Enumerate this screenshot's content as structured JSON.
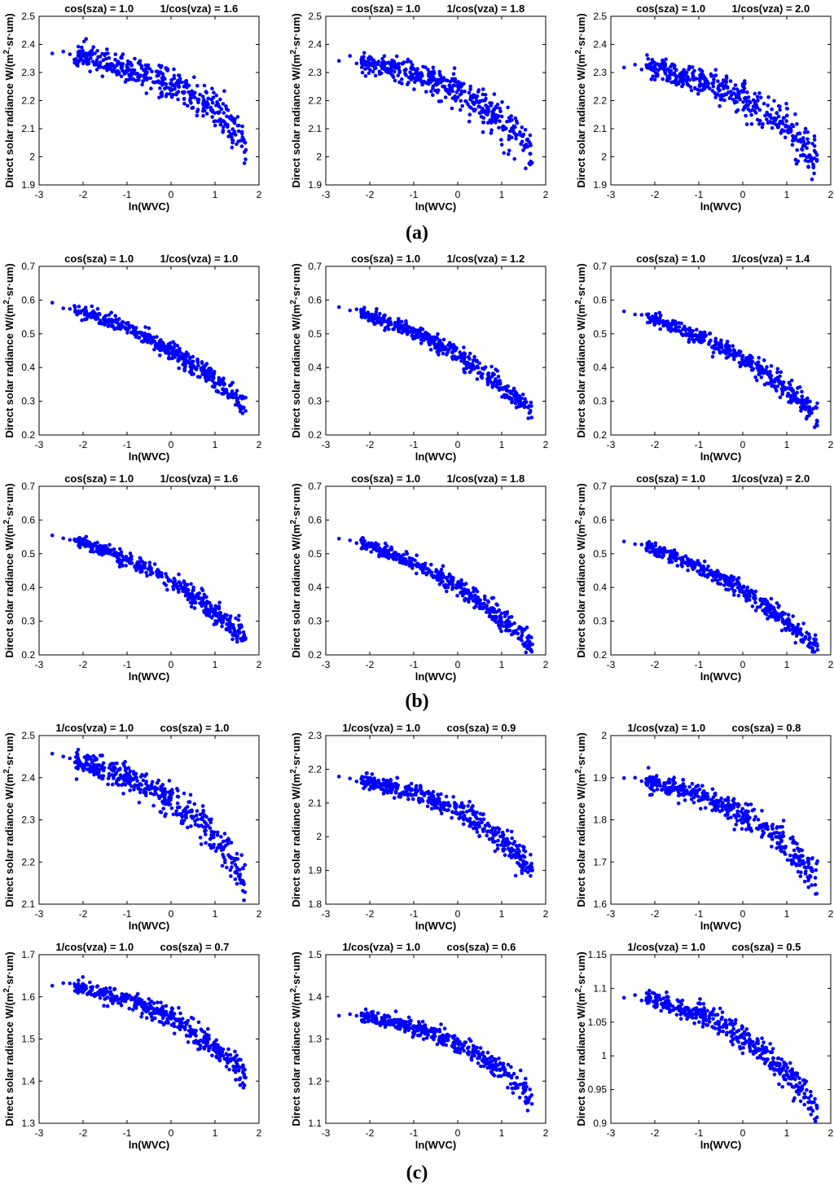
{
  "figure": {
    "panel_labels": [
      "(a)",
      "(b)",
      "(c)"
    ]
  },
  "style": {
    "marker_color": "#0000ff",
    "axis_color": "#000000",
    "background": "#ffffff"
  },
  "chart_data": [
    {
      "type": "scatter",
      "title_left": "cos(sza) = 1.0",
      "title_right": "1/cos(vza) = 1.6",
      "xlabel": "ln(WVC)",
      "ylabel_main": "Direct solar radiance W/(m",
      "ylabel_sup": "2",
      "ylabel_tail": "·sr·um)",
      "xlim": [
        -3,
        2
      ],
      "ylim": [
        1.9,
        2.5
      ],
      "xticks": [
        "-3",
        "-2",
        "-1",
        "0",
        "1",
        "2"
      ],
      "yticks": [
        "1.9",
        "2",
        "2.1",
        "2.2",
        "2.3",
        "2.4",
        "2.5"
      ],
      "curve": {
        "start": 2.37,
        "drop": 0.31,
        "k": 2.2,
        "shift": 0
      },
      "spread": 0.025,
      "n": 420,
      "seed": 11
    },
    {
      "type": "scatter",
      "title_left": "cos(sza) = 1.0",
      "title_right": "1/cos(vza) = 1.8",
      "xlabel": "ln(WVC)",
      "ylabel_main": "Direct solar radiance W/(m",
      "ylabel_sup": "2",
      "ylabel_tail": "·sr·um)",
      "xlim": [
        -3,
        2
      ],
      "ylim": [
        1.9,
        2.5
      ],
      "xticks": [
        "-3",
        "-2",
        "-1",
        "0",
        "1",
        "2"
      ],
      "yticks": [
        "1.9",
        "2",
        "2.1",
        "2.2",
        "2.3",
        "2.4",
        "2.5"
      ],
      "curve": {
        "start": 2.35,
        "drop": 0.33,
        "k": 2.2,
        "shift": 0
      },
      "spread": 0.025,
      "n": 420,
      "seed": 12
    },
    {
      "type": "scatter",
      "title_left": "cos(sza) = 1.0",
      "title_right": "1/cos(vza) = 2.0",
      "xlabel": "ln(WVC)",
      "ylabel_main": "Direct solar radiance W/(m",
      "ylabel_sup": "2",
      "ylabel_tail": "·sr·um)",
      "xlim": [
        -3,
        2
      ],
      "ylim": [
        1.9,
        2.5
      ],
      "xticks": [
        "-3",
        "-2",
        "-1",
        "0",
        "1",
        "2"
      ],
      "yticks": [
        "1.9",
        "2",
        "2.1",
        "2.2",
        "2.3",
        "2.4",
        "2.5"
      ],
      "curve": {
        "start": 2.33,
        "drop": 0.34,
        "k": 2.2,
        "shift": 0
      },
      "spread": 0.025,
      "n": 420,
      "seed": 13
    },
    {
      "type": "scatter",
      "title_left": "cos(sza) = 1.0",
      "title_right": "1/cos(vza) = 1.0",
      "xlabel": "ln(WVC)",
      "ylabel_main": "Direct solar radiance W/(m",
      "ylabel_sup": "2",
      "ylabel_tail": "·sr·um)",
      "xlim": [
        -3,
        2
      ],
      "ylim": [
        0.2,
        0.7
      ],
      "xticks": [
        "-3",
        "-2",
        "-1",
        "0",
        "1",
        "2"
      ],
      "yticks": [
        "0.2",
        "0.3",
        "0.4",
        "0.5",
        "0.6",
        "0.7"
      ],
      "curve": {
        "start": 0.59,
        "drop": 0.3,
        "k": 1.3,
        "shift": 0
      },
      "spread": 0.011,
      "n": 420,
      "seed": 21
    },
    {
      "type": "scatter",
      "title_left": "cos(sza) = 1.0",
      "title_right": "1/cos(vza) = 1.2",
      "xlabel": "ln(WVC)",
      "ylabel_main": "Direct solar radiance W/(m",
      "ylabel_sup": "2",
      "ylabel_tail": "·sr·um)",
      "xlim": [
        -3,
        2
      ],
      "ylim": [
        0.2,
        0.7
      ],
      "xticks": [
        "-3",
        "-2",
        "-1",
        "0",
        "1",
        "2"
      ],
      "yticks": [
        "0.2",
        "0.3",
        "0.4",
        "0.5",
        "0.6",
        "0.7"
      ],
      "curve": {
        "start": 0.58,
        "drop": 0.31,
        "k": 1.3,
        "shift": 0
      },
      "spread": 0.011,
      "n": 420,
      "seed": 22
    },
    {
      "type": "scatter",
      "title_left": "cos(sza) = 1.0",
      "title_right": "1/cos(vza) = 1.4",
      "xlabel": "ln(WVC)",
      "ylabel_main": "Direct solar radiance W/(m",
      "ylabel_sup": "2",
      "ylabel_tail": "·sr·um)",
      "xlim": [
        -3,
        2
      ],
      "ylim": [
        0.2,
        0.7
      ],
      "xticks": [
        "-3",
        "-2",
        "-1",
        "0",
        "1",
        "2"
      ],
      "yticks": [
        "0.2",
        "0.3",
        "0.4",
        "0.5",
        "0.6",
        "0.7"
      ],
      "curve": {
        "start": 0.57,
        "drop": 0.31,
        "k": 1.3,
        "shift": 0
      },
      "spread": 0.011,
      "n": 420,
      "seed": 23
    },
    {
      "type": "scatter",
      "title_left": "cos(sza) = 1.0",
      "title_right": "1/cos(vza) = 1.6",
      "xlabel": "ln(WVC)",
      "ylabel_main": "Direct solar radiance W/(m",
      "ylabel_sup": "2",
      "ylabel_tail": "·sr·um)",
      "xlim": [
        -3,
        2
      ],
      "ylim": [
        0.2,
        0.7
      ],
      "xticks": [
        "-3",
        "-2",
        "-1",
        "0",
        "1",
        "2"
      ],
      "yticks": [
        "0.2",
        "0.3",
        "0.4",
        "0.5",
        "0.6",
        "0.7"
      ],
      "curve": {
        "start": 0.56,
        "drop": 0.31,
        "k": 1.3,
        "shift": 0
      },
      "spread": 0.011,
      "n": 420,
      "seed": 24
    },
    {
      "type": "scatter",
      "title_left": "cos(sza) = 1.0",
      "title_right": "1/cos(vza) = 1.8",
      "xlabel": "ln(WVC)",
      "ylabel_main": "Direct solar radiance W/(m",
      "ylabel_sup": "2",
      "ylabel_tail": "·sr·um)",
      "xlim": [
        -3,
        2
      ],
      "ylim": [
        0.2,
        0.7
      ],
      "xticks": [
        "-3",
        "-2",
        "-1",
        "0",
        "1",
        "2"
      ],
      "yticks": [
        "0.2",
        "0.3",
        "0.4",
        "0.5",
        "0.6",
        "0.7"
      ],
      "curve": {
        "start": 0.55,
        "drop": 0.32,
        "k": 1.3,
        "shift": 0
      },
      "spread": 0.011,
      "n": 420,
      "seed": 25
    },
    {
      "type": "scatter",
      "title_left": "cos(sza) = 1.0",
      "title_right": "1/cos(vza) = 2.0",
      "xlabel": "ln(WVC)",
      "ylabel_main": "Direct solar radiance W/(m",
      "ylabel_sup": "2",
      "ylabel_tail": "·sr·um)",
      "xlim": [
        -3,
        2
      ],
      "ylim": [
        0.2,
        0.7
      ],
      "xticks": [
        "-3",
        "-2",
        "-1",
        "0",
        "1",
        "2"
      ],
      "yticks": [
        "0.2",
        "0.3",
        "0.4",
        "0.5",
        "0.6",
        "0.7"
      ],
      "curve": {
        "start": 0.54,
        "drop": 0.32,
        "k": 1.3,
        "shift": 0
      },
      "spread": 0.011,
      "n": 420,
      "seed": 26
    },
    {
      "type": "scatter",
      "title_left": "1/cos(vza) = 1.0",
      "title_right": "cos(sza) = 1.0",
      "xlabel": "ln(WVC)",
      "ylabel_main": "Direct solar radiance W/(m",
      "ylabel_sup": "2",
      "ylabel_tail": "·sr·um)",
      "xlim": [
        -3,
        2
      ],
      "ylim": [
        2.1,
        2.5
      ],
      "xticks": [
        "-3",
        "-2",
        "-1",
        "0",
        "1",
        "2"
      ],
      "yticks": [
        "2.1",
        "2.2",
        "2.3",
        "2.4",
        "2.5"
      ],
      "curve": {
        "start": 2.45,
        "drop": 0.29,
        "k": 2.2,
        "shift": 0
      },
      "spread": 0.017,
      "n": 420,
      "seed": 31
    },
    {
      "type": "scatter",
      "title_left": "1/cos(vza) = 1.0",
      "title_right": "cos(sza) = 0.9",
      "xlabel": "ln(WVC)",
      "ylabel_main": "Direct solar radiance W/(m",
      "ylabel_sup": "2",
      "ylabel_tail": "·sr·um)",
      "xlim": [
        -3,
        2
      ],
      "ylim": [
        1.8,
        2.3
      ],
      "xticks": [
        "-3",
        "-2",
        "-1",
        "0",
        "1",
        "2"
      ],
      "yticks": [
        "1.8",
        "1.9",
        "2",
        "2.1",
        "2.2",
        "2.3"
      ],
      "curve": {
        "start": 2.175,
        "drop": 0.27,
        "k": 2.2,
        "shift": 0
      },
      "spread": 0.015,
      "n": 420,
      "seed": 32
    },
    {
      "type": "scatter",
      "title_left": "1/cos(vza) = 1.0",
      "title_right": "cos(sza) = 0.8",
      "xlabel": "ln(WVC)",
      "ylabel_main": "Direct solar radiance W/(m",
      "ylabel_sup": "2",
      "ylabel_tail": "·sr·um)",
      "xlim": [
        -3,
        2
      ],
      "ylim": [
        1.6,
        2.0
      ],
      "xticks": [
        "-3",
        "-2",
        "-1",
        "0",
        "1",
        "2"
      ],
      "yticks": [
        "1.6",
        "1.7",
        "1.8",
        "1.9",
        "2"
      ],
      "curve": {
        "start": 1.9,
        "drop": 0.24,
        "k": 2.2,
        "shift": 0
      },
      "spread": 0.013,
      "n": 420,
      "seed": 33
    },
    {
      "type": "scatter",
      "title_left": "1/cos(vza) = 1.0",
      "title_right": "cos(sza) = 0.7",
      "xlabel": "ln(WVC)",
      "ylabel_main": "Direct solar radiance W/(m",
      "ylabel_sup": "2",
      "ylabel_tail": "·sr·um)",
      "xlim": [
        -3,
        2
      ],
      "ylim": [
        1.3,
        1.7
      ],
      "xticks": [
        "-3",
        "-2",
        "-1",
        "0",
        "1",
        "2"
      ],
      "yticks": [
        "1.3",
        "1.4",
        "1.5",
        "1.6",
        "1.7"
      ],
      "curve": {
        "start": 1.63,
        "drop": 0.22,
        "k": 2.2,
        "shift": 0
      },
      "spread": 0.011,
      "n": 420,
      "seed": 34
    },
    {
      "type": "scatter",
      "title_left": "1/cos(vza) = 1.0",
      "title_right": "cos(sza) = 0.6",
      "xlabel": "ln(WVC)",
      "ylabel_main": "Direct solar radiance W/(m",
      "ylabel_sup": "2",
      "ylabel_tail": "·sr·um)",
      "xlim": [
        -3,
        2
      ],
      "ylim": [
        1.1,
        1.5
      ],
      "xticks": [
        "-3",
        "-2",
        "-1",
        "0",
        "1",
        "2"
      ],
      "yticks": [
        "1.1",
        "1.2",
        "1.3",
        "1.4",
        "1.5"
      ],
      "curve": {
        "start": 1.36,
        "drop": 0.2,
        "k": 2.2,
        "shift": 0
      },
      "spread": 0.01,
      "n": 420,
      "seed": 35
    },
    {
      "type": "scatter",
      "title_left": "1/cos(vza) = 1.0",
      "title_right": "cos(sza) = 0.5",
      "xlabel": "ln(WVC)",
      "ylabel_main": "Direct solar radiance W/(m",
      "ylabel_sup": "2",
      "ylabel_tail": "·sr·um)",
      "xlim": [
        -3,
        2
      ],
      "ylim": [
        0.9,
        1.15
      ],
      "xticks": [
        "-3",
        "-2",
        "-1",
        "0",
        "1",
        "2"
      ],
      "yticks": [
        "0.9",
        "0.95",
        "1",
        "1.05",
        "1.1",
        "1.15"
      ],
      "curve": {
        "start": 1.09,
        "drop": 0.17,
        "k": 2.2,
        "shift": 0
      },
      "spread": 0.008,
      "n": 420,
      "seed": 36
    }
  ]
}
